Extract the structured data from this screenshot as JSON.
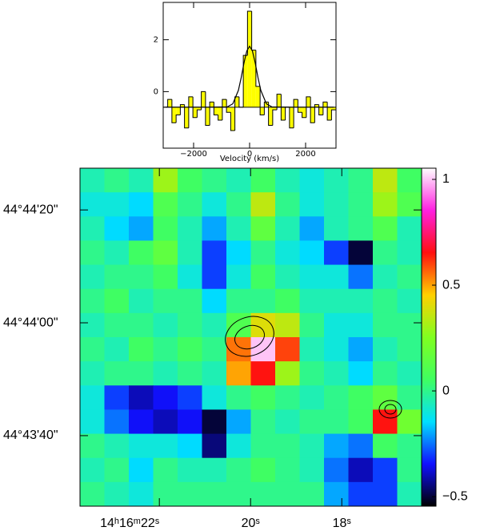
{
  "chart_data": [
    {
      "type": "step",
      "xlabel": "Velocity (km/s)",
      "x": [
        -3000,
        -2850,
        -2700,
        -2550,
        -2400,
        -2250,
        -2100,
        -1950,
        -1800,
        -1650,
        -1500,
        -1350,
        -1200,
        -1050,
        -900,
        -750,
        -600,
        -450,
        -300,
        -150,
        0,
        150,
        300,
        450,
        600,
        750,
        900,
        1050,
        1200,
        1350,
        1500,
        1650,
        1800,
        1950,
        2100,
        2250,
        2400,
        2550,
        2700,
        2850,
        3000
      ],
      "values": [
        -0.6,
        -0.3,
        -1.2,
        -0.9,
        -0.5,
        -1.4,
        -0.2,
        -1.0,
        -0.7,
        0.0,
        -1.3,
        -0.4,
        -0.9,
        -1.1,
        -0.3,
        -0.8,
        -1.5,
        -0.2,
        -0.6,
        1.4,
        3.1,
        1.6,
        0.2,
        -0.9,
        -0.4,
        -1.3,
        -0.7,
        -0.1,
        -1.1,
        -0.6,
        -1.4,
        -0.3,
        -0.8,
        -1.0,
        -0.2,
        -1.2,
        -0.5,
        -0.9,
        -0.4,
        -1.1,
        -0.7
      ],
      "color": "#ffff00",
      "baseline": -0.6,
      "fit": {
        "x": [
          -3000,
          -1500,
          -800,
          -600,
          -400,
          -300,
          -200,
          -100,
          0,
          100,
          200,
          300,
          400,
          600,
          800,
          1500,
          3000
        ],
        "values": [
          -0.6,
          -0.6,
          -0.59,
          -0.47,
          0.05,
          0.54,
          1.11,
          1.57,
          1.75,
          1.57,
          1.11,
          0.54,
          0.05,
          -0.47,
          -0.59,
          -0.6,
          -0.6
        ]
      },
      "xlim": [
        -3086,
        3086
      ],
      "ylim": [
        -2.18,
        3.44
      ],
      "xticks": [
        {
          "value": -2000,
          "label": "−2000"
        },
        0,
        2000
      ],
      "yticks": [
        0,
        2
      ]
    },
    {
      "type": "heatmap",
      "xlim": [
        23.74,
        16.25
      ],
      "ylim": [
        27.5,
        87.4
      ],
      "xticks": [
        {
          "value": 22,
          "label": "14ʰ16ᵐ22ˢ"
        },
        {
          "value": 20,
          "label": "20ˢ"
        },
        {
          "value": 18,
          "label": "18ˢ"
        }
      ],
      "yticks": [
        {
          "value": 80,
          "label": "44°44'20\""
        },
        {
          "value": 60,
          "label": "44°44'00\""
        },
        {
          "value": 40,
          "label": "44°43'40\""
        }
      ],
      "clim": [
        -0.545,
        1.053
      ],
      "cticks": [
        1,
        0.5,
        0,
        {
          "value": -0.5,
          "label": "−0.5"
        }
      ],
      "colormap": [
        "#000000",
        "#1010ff",
        "#00e0ff",
        "#40ff60",
        "#80ff20",
        "#ffd000",
        "#ff1010",
        "#ff20e0",
        "#ffffff"
      ],
      "z": [
        [
          -0.05,
          0.0,
          -0.05,
          0.3,
          0.05,
          0.0,
          -0.05,
          0.05,
          -0.05,
          -0.1,
          -0.05,
          0.0,
          0.35,
          0.05
        ],
        [
          -0.1,
          -0.1,
          -0.15,
          0.1,
          0.0,
          -0.1,
          0.0,
          0.35,
          0.0,
          -0.1,
          -0.05,
          0.0,
          0.3,
          0.1
        ],
        [
          -0.05,
          -0.15,
          -0.2,
          0.05,
          -0.05,
          -0.2,
          -0.05,
          0.15,
          -0.05,
          -0.2,
          -0.05,
          0.0,
          0.1,
          -0.05
        ],
        [
          0.0,
          -0.05,
          0.05,
          0.15,
          -0.05,
          -0.3,
          -0.15,
          0.0,
          -0.1,
          -0.15,
          -0.3,
          -0.5,
          0.0,
          -0.05
        ],
        [
          -0.05,
          0.0,
          0.0,
          0.05,
          -0.1,
          -0.3,
          -0.1,
          0.05,
          -0.05,
          -0.1,
          -0.1,
          -0.25,
          -0.05,
          0.0
        ],
        [
          0.0,
          0.05,
          -0.05,
          0.0,
          0.0,
          -0.15,
          0.0,
          0.0,
          0.05,
          -0.05,
          -0.05,
          -0.05,
          0.0,
          -0.05
        ],
        [
          -0.05,
          0.0,
          0.0,
          -0.05,
          0.0,
          -0.05,
          0.1,
          0.4,
          0.35,
          0.0,
          -0.1,
          -0.1,
          0.0,
          0.0
        ],
        [
          0.0,
          -0.05,
          0.05,
          0.0,
          0.05,
          0.0,
          0.55,
          1.0,
          0.6,
          -0.05,
          -0.1,
          -0.2,
          -0.05,
          0.0
        ],
        [
          -0.05,
          0.0,
          0.0,
          -0.05,
          0.0,
          -0.05,
          0.5,
          0.65,
          0.3,
          0.0,
          -0.05,
          -0.15,
          0.0,
          -0.05
        ],
        [
          -0.1,
          -0.3,
          -0.4,
          -0.35,
          -0.3,
          -0.1,
          0.0,
          0.05,
          0.0,
          -0.05,
          0.0,
          0.05,
          0.15,
          0.0
        ],
        [
          -0.1,
          -0.25,
          -0.35,
          -0.4,
          -0.35,
          -0.5,
          -0.2,
          0.0,
          -0.05,
          0.0,
          0.0,
          0.05,
          0.65,
          0.2
        ],
        [
          0.0,
          -0.05,
          -0.1,
          -0.1,
          -0.15,
          -0.45,
          -0.1,
          0.0,
          0.0,
          -0.05,
          -0.2,
          -0.25,
          0.05,
          0.0
        ],
        [
          -0.05,
          0.0,
          -0.15,
          0.0,
          -0.05,
          -0.05,
          0.0,
          0.05,
          0.0,
          -0.05,
          -0.25,
          -0.4,
          -0.3,
          0.0
        ],
        [
          0.0,
          -0.05,
          -0.1,
          0.0,
          0.0,
          0.0,
          0.0,
          0.0,
          0.0,
          0.0,
          -0.2,
          -0.3,
          -0.3,
          -0.05
        ]
      ]
    }
  ]
}
